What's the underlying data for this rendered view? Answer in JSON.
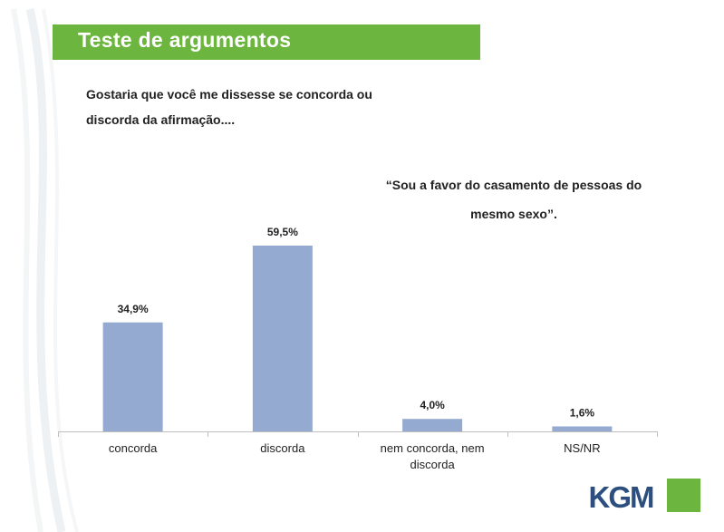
{
  "header": {
    "title": "Teste de argumentos"
  },
  "question_lines": [
    "Gostaria que você me dissesse se concorda ou",
    "discorda da afirmação...."
  ],
  "statement_lines": [
    "“Sou a favor do casamento de pessoas do",
    "mesmo sexo”."
  ],
  "logo": {
    "text": "KGM"
  },
  "colors": {
    "bar": "#94aad1",
    "title_bar": "#6cb63f",
    "logo": "#2c4f7f",
    "axis": "#bfbfbf"
  },
  "chart_data": {
    "type": "bar",
    "categories": [
      [
        "concorda"
      ],
      [
        "discorda"
      ],
      [
        "nem concorda, nem",
        "discorda"
      ],
      [
        "NS/NR"
      ]
    ],
    "values": [
      34.9,
      59.5,
      4.0,
      1.6
    ],
    "data_labels": [
      "34,9%",
      "59,5%",
      "4,0%",
      "1,6%"
    ],
    "ylim": [
      0,
      60
    ],
    "grid": false,
    "legend": "none"
  }
}
